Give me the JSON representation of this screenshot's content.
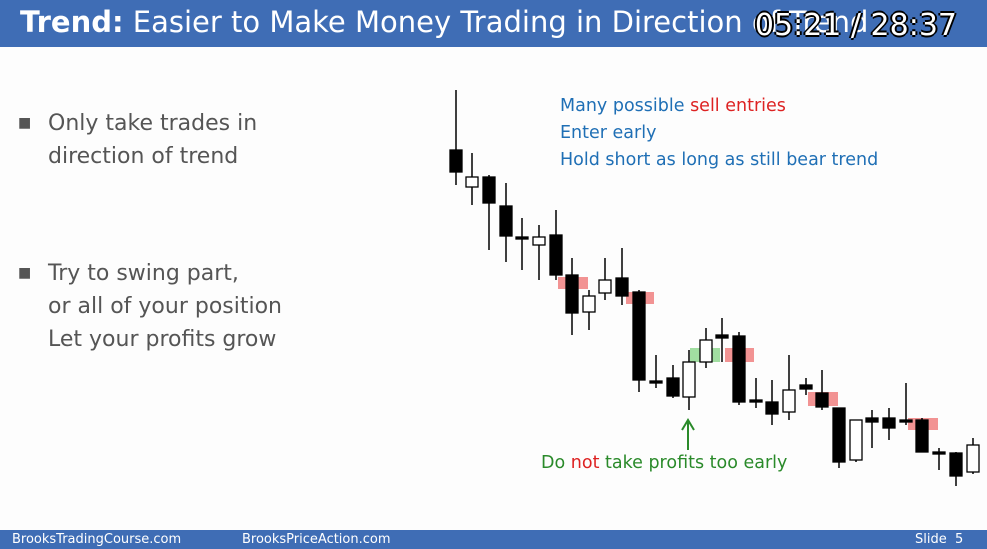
{
  "header": {
    "title_bold": "Trend:",
    "title_rest": "Easier to Make Money Trading in Direction of Trend",
    "timestamp": "05:21 / 28:37"
  },
  "bullets": [
    {
      "lines": [
        "Only take trades in",
        "direction of trend"
      ]
    },
    {
      "lines": [
        "Try to swing part,",
        "or all of your position",
        "Let your profits grow"
      ]
    }
  ],
  "notes": {
    "line1_a": "Many possible",
    "line1_b": "sell entries",
    "line2": "Enter early",
    "line3": "Hold short as long as still bear trend"
  },
  "caption": {
    "a": "Do",
    "b": "not",
    "c": "take profits too early"
  },
  "footer": {
    "left": "BrooksTradingCourse.com",
    "middle": "BrooksPriceAction.com",
    "right": "Slide  5"
  }
}
